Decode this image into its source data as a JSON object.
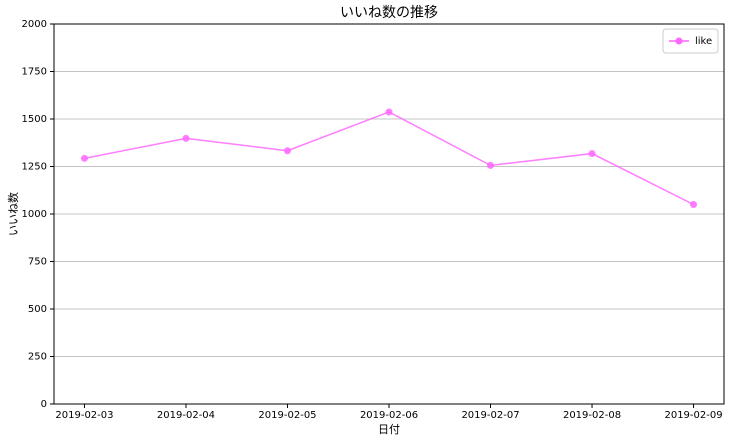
{
  "chart_data": {
    "type": "line",
    "title": "いいね数の推移",
    "x_label": "日付",
    "y_label": "いいね数",
    "categories": [
      "2019-02-03",
      "2019-02-04",
      "2019-02-05",
      "2019-02-06",
      "2019-02-07",
      "2019-02-08",
      "2019-02-09"
    ],
    "series": [
      {
        "name": "like",
        "color": "#ff66ff",
        "values": [
          1293,
          1398,
          1333,
          1537,
          1256,
          1318,
          1050
        ]
      }
    ],
    "ylim": [
      0,
      2000
    ],
    "yticks": [
      0,
      250,
      500,
      750,
      1000,
      1250,
      1500,
      1750,
      2000
    ],
    "grid": true,
    "legend": "upper-right"
  }
}
